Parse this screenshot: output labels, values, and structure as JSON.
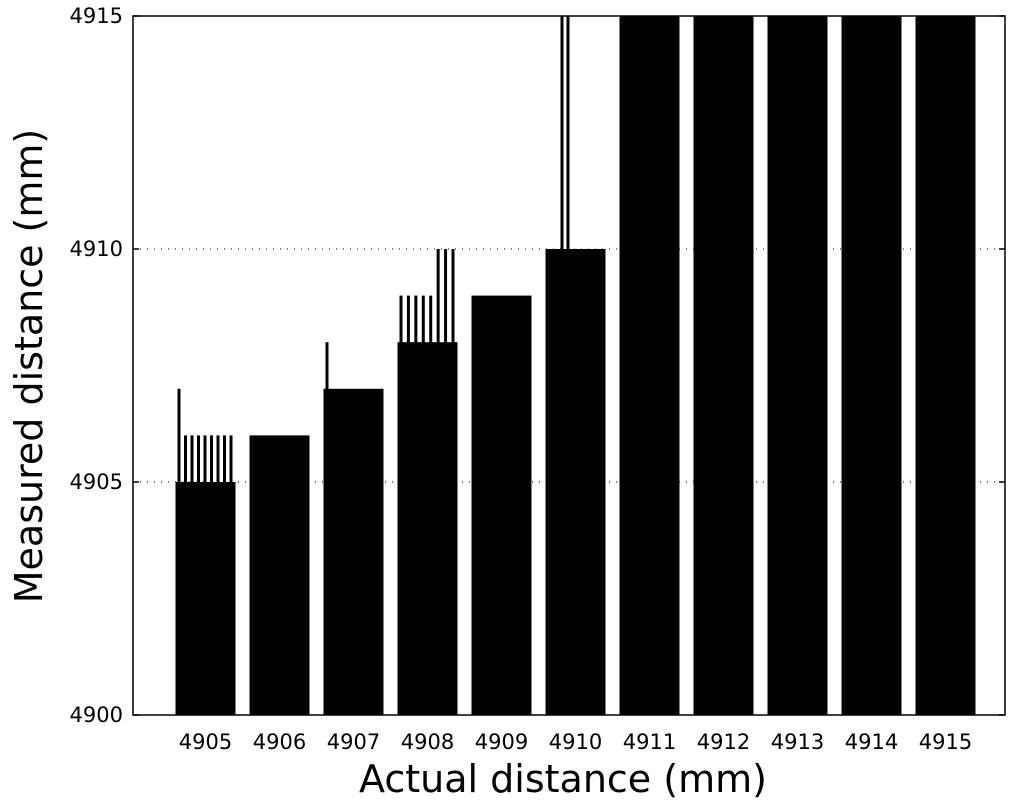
{
  "chart_data": {
    "type": "bar",
    "title": "",
    "xlabel": "Actual distance (mm)",
    "ylabel": "Measured distance (mm)",
    "categories": [
      "4905",
      "4906",
      "4907",
      "4908",
      "4909",
      "4910",
      "4911",
      "4912",
      "4913",
      "4914",
      "4915"
    ],
    "values": [
      4905,
      4906,
      4907,
      4908,
      4909,
      4910,
      4915,
      4915,
      4915,
      4915,
      4915
    ],
    "ylim": [
      4900,
      4915
    ],
    "yticks": [
      "4900",
      "4905",
      "4910",
      "4915"
    ],
    "grid": "y-dotted",
    "spikes": [
      {
        "category": "4905",
        "value": 4907
      },
      {
        "category": "4905",
        "value": 4906
      },
      {
        "category": "4905",
        "value": 4906
      },
      {
        "category": "4905",
        "value": 4906
      },
      {
        "category": "4905",
        "value": 4906
      },
      {
        "category": "4905",
        "value": 4906
      },
      {
        "category": "4905",
        "value": 4906
      },
      {
        "category": "4905",
        "value": 4906
      },
      {
        "category": "4905",
        "value": 4906
      },
      {
        "category": "4907",
        "value": 4908
      },
      {
        "category": "4908",
        "value": 4909
      },
      {
        "category": "4908",
        "value": 4909
      },
      {
        "category": "4908",
        "value": 4909
      },
      {
        "category": "4908",
        "value": 4909
      },
      {
        "category": "4908",
        "value": 4909
      },
      {
        "category": "4908",
        "value": 4910
      },
      {
        "category": "4908",
        "value": 4910
      },
      {
        "category": "4908",
        "value": 4910
      },
      {
        "category": "4910",
        "value": 4915
      },
      {
        "category": "4910",
        "value": 4915
      }
    ],
    "colors": {
      "bar": "#000000",
      "background": "#ffffff",
      "grid": "#000000"
    }
  }
}
